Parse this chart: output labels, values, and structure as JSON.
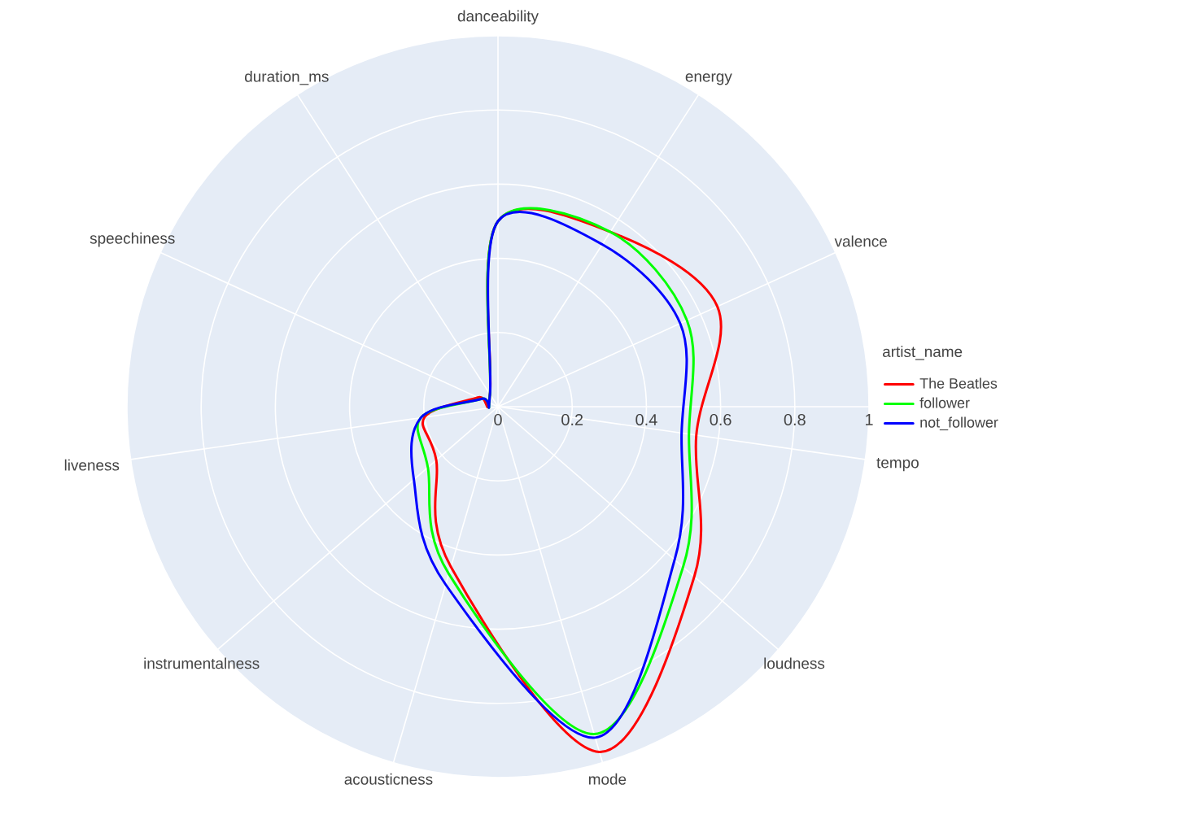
{
  "chart_data": {
    "type": "radar",
    "legend_title": "artist_name",
    "categories": [
      "danceability",
      "energy",
      "valence",
      "tempo",
      "loudness",
      "mode",
      "acousticness",
      "instrumentalness",
      "liveness",
      "speechiness",
      "duration_ms"
    ],
    "series": [
      {
        "name": "The Beatles",
        "color": "#ff0000",
        "values": [
          0.5,
          0.56,
          0.65,
          0.54,
          0.7,
          0.97,
          0.45,
          0.22,
          0.2,
          0.06,
          0.04
        ]
      },
      {
        "name": "follower",
        "color": "#00ff00",
        "values": [
          0.5,
          0.56,
          0.56,
          0.52,
          0.66,
          0.92,
          0.47,
          0.25,
          0.21,
          0.05,
          0.04
        ]
      },
      {
        "name": "not_follower",
        "color": "#0000ff",
        "values": [
          0.5,
          0.52,
          0.54,
          0.5,
          0.63,
          0.93,
          0.5,
          0.3,
          0.21,
          0.05,
          0.04
        ]
      }
    ],
    "ylim": [
      0,
      1
    ],
    "yticks": [
      0,
      0.2,
      0.4,
      0.6,
      0.8,
      1
    ],
    "grid": true,
    "legend": "right",
    "line_style": "solid"
  }
}
